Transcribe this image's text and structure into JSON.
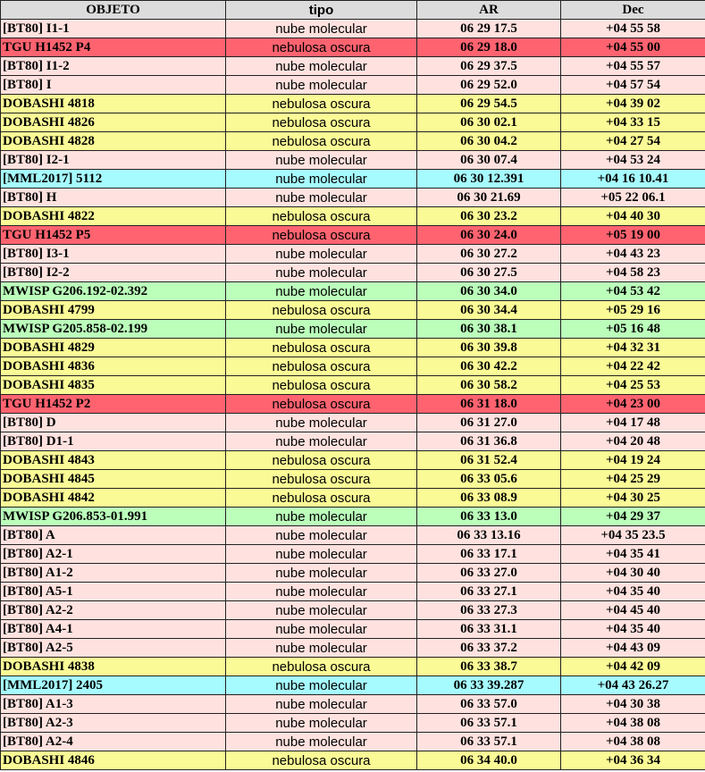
{
  "colors": {
    "p": "#ffe2df",
    "r": "#ff6370",
    "y": "#fafa96",
    "c": "#a6fbff",
    "g": "#bbffbb"
  },
  "header": {
    "objeto": "OBJETO",
    "tipo": "tipo",
    "ar": "AR",
    "dec": "Dec"
  },
  "rows": [
    {
      "objeto": "[BT80] I1-1",
      "tipo": "nube molecular",
      "ar": "06 29 17.5",
      "dec": "+04 55 58",
      "cat": "p"
    },
    {
      "objeto": "TGU H1452 P4",
      "tipo": "nebulosa oscura",
      "ar": "06 29 18.0",
      "dec": "+04 55 00",
      "cat": "r"
    },
    {
      "objeto": "[BT80] I1-2",
      "tipo": "nube molecular",
      "ar": "06 29 37.5",
      "dec": "+04 55 57",
      "cat": "p"
    },
    {
      "objeto": "[BT80] I",
      "tipo": "nube molecular",
      "ar": "06 29 52.0",
      "dec": "+04 57 54",
      "cat": "p"
    },
    {
      "objeto": "DOBASHI 4818",
      "tipo": "nebulosa oscura",
      "ar": "06 29 54.5",
      "dec": "+04 39 02",
      "cat": "y"
    },
    {
      "objeto": "DOBASHI 4826",
      "tipo": "nebulosa oscura",
      "ar": "06 30 02.1",
      "dec": "+04 33 15",
      "cat": "y"
    },
    {
      "objeto": "DOBASHI 4828",
      "tipo": "nebulosa oscura",
      "ar": "06 30 04.2",
      "dec": "+04 27 54",
      "cat": "y"
    },
    {
      "objeto": "[BT80] I2-1",
      "tipo": "nube molecular",
      "ar": "06 30 07.4",
      "dec": "+04 53 24",
      "cat": "p"
    },
    {
      "objeto": "[MML2017] 5112",
      "tipo": "nube molecular",
      "ar": "06 30 12.391",
      "dec": "+04 16 10.41",
      "cat": "c"
    },
    {
      "objeto": "[BT80] H",
      "tipo": "nube molecular",
      "ar": "06 30 21.69",
      "dec": "+05 22 06.1",
      "cat": "p"
    },
    {
      "objeto": "DOBASHI 4822",
      "tipo": "nebulosa oscura",
      "ar": "06 30 23.2",
      "dec": "+04 40 30",
      "cat": "y"
    },
    {
      "objeto": "TGU H1452 P5",
      "tipo": "nebulosa oscura",
      "ar": "06 30 24.0",
      "dec": "+05 19 00",
      "cat": "r"
    },
    {
      "objeto": "[BT80] I3-1",
      "tipo": "nube molecular",
      "ar": "06 30 27.2",
      "dec": "+04 43 23",
      "cat": "p"
    },
    {
      "objeto": "[BT80] I2-2",
      "tipo": "nube molecular",
      "ar": "06 30 27.5",
      "dec": "+04 58 23",
      "cat": "p"
    },
    {
      "objeto": "MWISP G206.192-02.392",
      "tipo": "nube molecular",
      "ar": "06 30 34.0",
      "dec": "+04 53 42",
      "cat": "g"
    },
    {
      "objeto": "DOBASHI 4799",
      "tipo": "nebulosa oscura",
      "ar": "06 30 34.4",
      "dec": "+05 29 16",
      "cat": "y"
    },
    {
      "objeto": "MWISP G205.858-02.199",
      "tipo": "nube molecular",
      "ar": "06 30 38.1",
      "dec": "+05 16 48",
      "cat": "g"
    },
    {
      "objeto": "DOBASHI 4829",
      "tipo": "nebulosa oscura",
      "ar": "06 30 39.8",
      "dec": "+04 32 31",
      "cat": "y"
    },
    {
      "objeto": "DOBASHI 4836",
      "tipo": "nebulosa oscura",
      "ar": "06 30 42.2",
      "dec": "+04 22 42",
      "cat": "y"
    },
    {
      "objeto": "DOBASHI 4835",
      "tipo": "nebulosa oscura",
      "ar": "06 30 58.2",
      "dec": "+04 25 53",
      "cat": "y"
    },
    {
      "objeto": "TGU H1452 P2",
      "tipo": "nebulosa oscura",
      "ar": "06 31 18.0",
      "dec": "+04 23 00",
      "cat": "r"
    },
    {
      "objeto": "[BT80] D",
      "tipo": "nube molecular",
      "ar": "06 31 27.0",
      "dec": "+04 17 48",
      "cat": "p"
    },
    {
      "objeto": "[BT80] D1-1",
      "tipo": "nube molecular",
      "ar": "06 31 36.8",
      "dec": "+04 20 48",
      "cat": "p"
    },
    {
      "objeto": "DOBASHI 4843",
      "tipo": "nebulosa oscura",
      "ar": "06 31 52.4",
      "dec": "+04 19 24",
      "cat": "y"
    },
    {
      "objeto": "DOBASHI 4845",
      "tipo": "nebulosa oscura",
      "ar": "06 33 05.6",
      "dec": "+04 25 29",
      "cat": "y"
    },
    {
      "objeto": "DOBASHI 4842",
      "tipo": "nebulosa oscura",
      "ar": "06 33 08.9",
      "dec": "+04 30 25",
      "cat": "y"
    },
    {
      "objeto": "MWISP G206.853-01.991",
      "tipo": "nube molecular",
      "ar": "06 33 13.0",
      "dec": "+04 29 37",
      "cat": "g"
    },
    {
      "objeto": "[BT80] A",
      "tipo": "nube molecular",
      "ar": "06 33 13.16",
      "dec": "+04 35 23.5",
      "cat": "p"
    },
    {
      "objeto": "[BT80] A2-1",
      "tipo": "nube molecular",
      "ar": "06 33 17.1",
      "dec": "+04 35 41",
      "cat": "p"
    },
    {
      "objeto": "[BT80] A1-2",
      "tipo": "nube molecular",
      "ar": "06 33 27.0",
      "dec": "+04 30 40",
      "cat": "p"
    },
    {
      "objeto": "[BT80] A5-1",
      "tipo": "nube molecular",
      "ar": "06 33 27.1",
      "dec": "+04 35 40",
      "cat": "p"
    },
    {
      "objeto": "[BT80] A2-2",
      "tipo": "nube molecular",
      "ar": "06 33 27.3",
      "dec": "+04 45 40",
      "cat": "p"
    },
    {
      "objeto": "[BT80] A4-1",
      "tipo": "nube molecular",
      "ar": "06 33 31.1",
      "dec": "+04 35 40",
      "cat": "p"
    },
    {
      "objeto": "[BT80] A2-5",
      "tipo": "nube molecular",
      "ar": "06 33 37.2",
      "dec": "+04 43 09",
      "cat": "p"
    },
    {
      "objeto": "DOBASHI 4838",
      "tipo": "nebulosa oscura",
      "ar": "06 33 38.7",
      "dec": "+04 42 09",
      "cat": "y"
    },
    {
      "objeto": "[MML2017] 2405",
      "tipo": "nube molecular",
      "ar": "06 33 39.287",
      "dec": "+04 43 26.27",
      "cat": "c"
    },
    {
      "objeto": "[BT80] A1-3",
      "tipo": "nube molecular",
      "ar": "06 33 57.0",
      "dec": "+04 30 38",
      "cat": "p"
    },
    {
      "objeto": "[BT80] A2-3",
      "tipo": "nube molecular",
      "ar": "06 33 57.1",
      "dec": "+04 38 08",
      "cat": "p"
    },
    {
      "objeto": "[BT80] A2-4",
      "tipo": "nube molecular",
      "ar": "06 33 57.1",
      "dec": "+04 38 08",
      "cat": "p"
    },
    {
      "objeto": "DOBASHI 4846",
      "tipo": "nebulosa oscura",
      "ar": "06 34 40.0",
      "dec": "+04 36 34",
      "cat": "y"
    }
  ]
}
